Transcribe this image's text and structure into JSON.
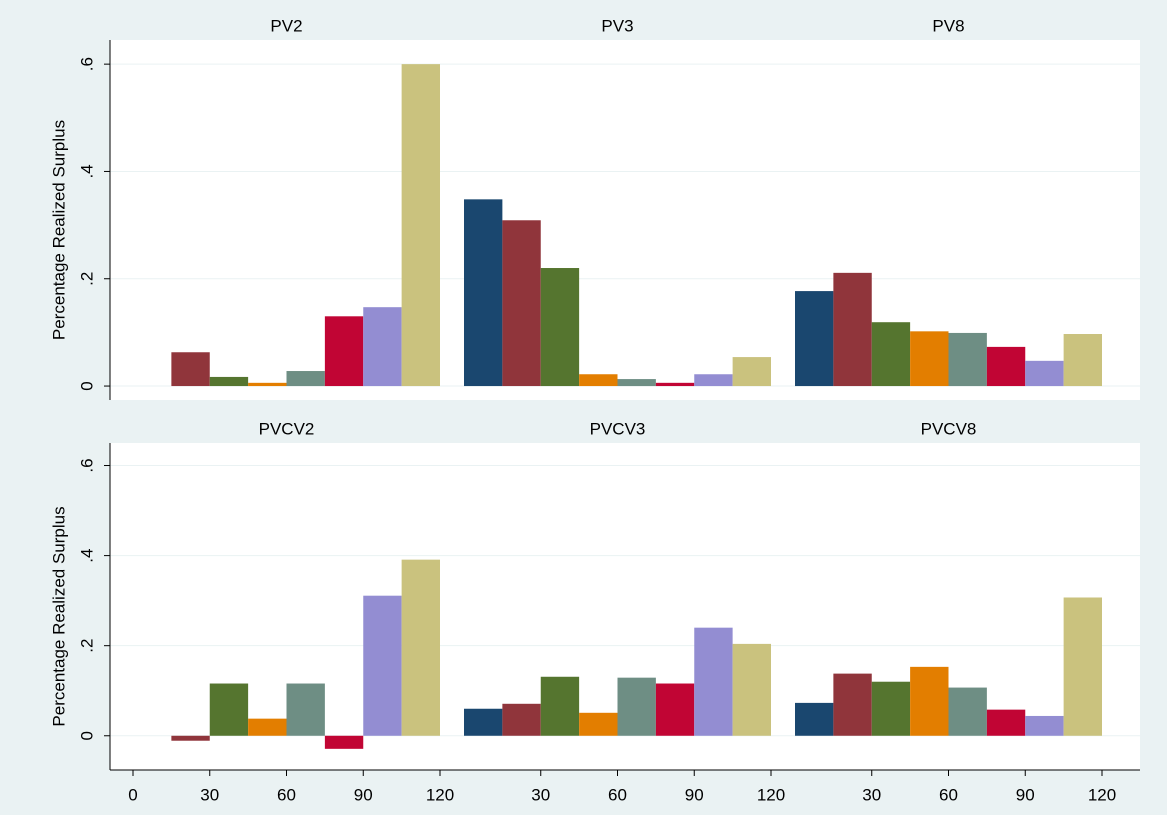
{
  "chart_data": {
    "type": "bar",
    "ylabel": "Percentage Realized Surplus",
    "colors": [
      "#1a476f",
      "#90353b",
      "#55752f",
      "#e37e00",
      "#6e8e84",
      "#c10534",
      "#938dd2",
      "#cac27e"
    ],
    "yticks": [
      {
        "value": 0,
        "label": "0"
      },
      {
        "value": 0.2,
        "label": ".2"
      },
      {
        "value": 0.4,
        "label": ".4"
      },
      {
        "value": 0.6,
        "label": ".6"
      }
    ],
    "xlim": [
      0,
      120
    ],
    "grid": true,
    "rows": [
      {
        "ylim": [
          -0.026,
          0.645
        ],
        "panels": [
          {
            "title": "PV2",
            "values": [
              null,
              0.063,
              0.017,
              0.006,
              0.028,
              0.13,
              0.147,
              0.6
            ]
          },
          {
            "title": "PV3",
            "values": [
              0.348,
              0.309,
              0.22,
              0.022,
              0.013,
              0.006,
              0.022,
              0.054
            ]
          },
          {
            "title": "PV8",
            "values": [
              0.177,
              0.211,
              0.119,
              0.102,
              0.099,
              0.073,
              0.047,
              0.097
            ]
          }
        ]
      },
      {
        "ylim": [
          -0.076,
          0.65
        ],
        "panels": [
          {
            "title": "PVCV2",
            "values": [
              null,
              -0.011,
              0.116,
              0.038,
              0.116,
              -0.029,
              0.311,
              0.391
            ],
            "xticks": [
              0,
              30,
              60,
              90,
              120
            ]
          },
          {
            "title": "PVCV3",
            "values": [
              0.06,
              0.071,
              0.131,
              0.051,
              0.129,
              0.116,
              0.24,
              0.204
            ],
            "xticks": [
              30,
              60,
              90,
              120
            ]
          },
          {
            "title": "PVCV8",
            "values": [
              0.073,
              0.138,
              0.12,
              0.153,
              0.107,
              0.058,
              0.044,
              0.307
            ],
            "xticks": [
              30,
              60,
              90,
              120
            ]
          }
        ]
      }
    ]
  }
}
